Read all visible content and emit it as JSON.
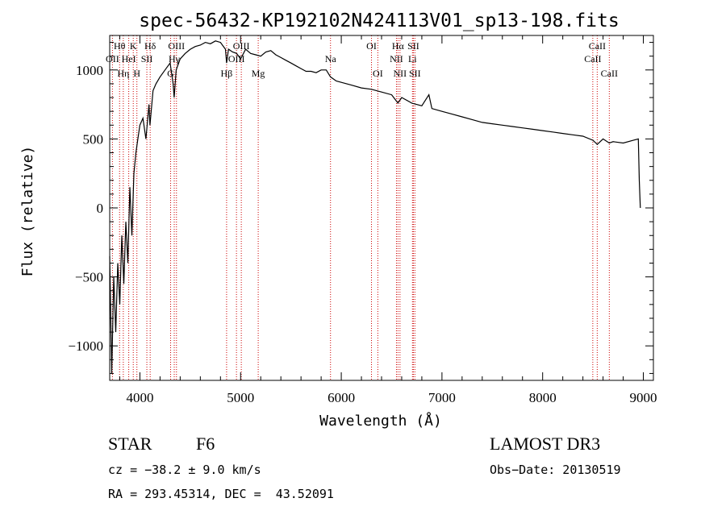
{
  "chart_data": {
    "type": "line",
    "title": "spec-56432-KP192102N424113V01_sp13-198.fits",
    "xlabel": "Wavelength (Å)",
    "ylabel": "Flux (relative)",
    "xlim": [
      3700,
      9100
    ],
    "ylim": [
      -1250,
      1250
    ],
    "x_ticks": [
      4000,
      5000,
      6000,
      7000,
      8000,
      9000
    ],
    "x_tick_labels": [
      "4000",
      "5000",
      "6000",
      "7000",
      "8000",
      "9000"
    ],
    "y_ticks": [
      -1000,
      -500,
      0,
      500,
      1000
    ],
    "y_tick_labels": [
      "−1000",
      "−500",
      "0",
      "500",
      "1000"
    ],
    "series": [
      {
        "name": "spectrum",
        "color": "#000000",
        "x": [
          3700,
          3720,
          3740,
          3760,
          3780,
          3800,
          3820,
          3840,
          3860,
          3880,
          3900,
          3920,
          3940,
          3960,
          3980,
          4000,
          4030,
          4060,
          4090,
          4100,
          4130,
          4160,
          4200,
          4250,
          4300,
          4330,
          4340,
          4360,
          4400,
          4450,
          4500,
          4550,
          4600,
          4650,
          4700,
          4750,
          4800,
          4850,
          4861,
          4880,
          4920,
          4960,
          5000,
          5050,
          5100,
          5150,
          5200,
          5250,
          5300,
          5350,
          5400,
          5450,
          5500,
          5550,
          5600,
          5650,
          5700,
          5750,
          5800,
          5850,
          5893,
          5950,
          6000,
          6100,
          6200,
          6300,
          6400,
          6500,
          6563,
          6600,
          6700,
          6800,
          6870,
          6900,
          7000,
          7100,
          7200,
          7300,
          7400,
          7500,
          7600,
          7700,
          7800,
          7900,
          8000,
          8100,
          8200,
          8300,
          8400,
          8500,
          8542,
          8600,
          8662,
          8700,
          8800,
          8900,
          8950,
          8960,
          8970
        ],
        "y": [
          -350,
          -1200,
          -500,
          -900,
          -400,
          -700,
          -200,
          -550,
          -100,
          -400,
          150,
          -200,
          250,
          400,
          500,
          600,
          650,
          500,
          750,
          600,
          850,
          900,
          950,
          1000,
          1050,
          900,
          800,
          1000,
          1080,
          1120,
          1150,
          1170,
          1180,
          1200,
          1190,
          1210,
          1200,
          1150,
          1050,
          1150,
          1130,
          1120,
          1080,
          1150,
          1120,
          1110,
          1100,
          1130,
          1140,
          1110,
          1090,
          1070,
          1050,
          1030,
          1010,
          990,
          990,
          980,
          1000,
          1000,
          950,
          920,
          910,
          890,
          870,
          860,
          840,
          820,
          760,
          800,
          760,
          740,
          820,
          720,
          700,
          680,
          660,
          640,
          620,
          610,
          600,
          590,
          580,
          570,
          560,
          550,
          540,
          530,
          520,
          490,
          460,
          500,
          470,
          480,
          470,
          490,
          500,
          200,
          0
        ]
      }
    ],
    "line_labels": [
      {
        "label": "Hθ",
        "x": 3798,
        "row": 1
      },
      {
        "label": "OII",
        "x": 3727,
        "row": 2
      },
      {
        "label": "Hη",
        "x": 3835,
        "row": 3
      },
      {
        "label": "K",
        "x": 3934,
        "row": 1
      },
      {
        "label": "HeI",
        "x": 3889,
        "row": 2
      },
      {
        "label": "H",
        "x": 3970,
        "row": 3
      },
      {
        "label": "Hδ",
        "x": 4102,
        "row": 1
      },
      {
        "label": "SII",
        "x": 4069,
        "row": 2
      },
      {
        "label": "OIII",
        "x": 4363,
        "row": 1
      },
      {
        "label": "Hγ",
        "x": 4341,
        "row": 2
      },
      {
        "label": "G",
        "x": 4305,
        "row": 3
      },
      {
        "label": "OIII",
        "x": 5007,
        "row": 1
      },
      {
        "label": "OIII",
        "x": 4959,
        "row": 2
      },
      {
        "label": "Hβ",
        "x": 4861,
        "row": 3
      },
      {
        "label": "Mg",
        "x": 5175,
        "row": 3
      },
      {
        "label": "Na",
        "x": 5893,
        "row": 2
      },
      {
        "label": "OI",
        "x": 6300,
        "row": 1
      },
      {
        "label": "OI",
        "x": 6363,
        "row": 3
      },
      {
        "label": "Hα",
        "x": 6563,
        "row": 1
      },
      {
        "label": "NII",
        "x": 6548,
        "row": 2
      },
      {
        "label": "NII",
        "x": 6583,
        "row": 3
      },
      {
        "label": "SII",
        "x": 6716,
        "row": 1
      },
      {
        "label": "Li",
        "x": 6707,
        "row": 2
      },
      {
        "label": "SII",
        "x": 6731,
        "row": 3
      },
      {
        "label": "CaII",
        "x": 8542,
        "row": 1
      },
      {
        "label": "CaII",
        "x": 8498,
        "row": 2
      },
      {
        "label": "CaII",
        "x": 8662,
        "row": 3
      }
    ]
  },
  "info": {
    "object_class": "STAR",
    "subclass": "F6",
    "survey": "LAMOST DR3",
    "cz": "cz = −38.2 ± 9.0 km/s",
    "obs_date": "Obs−Date: 20130519",
    "coords": "RA = 293.45314, DEC =  43.52091"
  },
  "colors": {
    "spectrum": "#000000",
    "line_marker": "#cc0000",
    "axis": "#000000",
    "background": "#ffffff"
  }
}
